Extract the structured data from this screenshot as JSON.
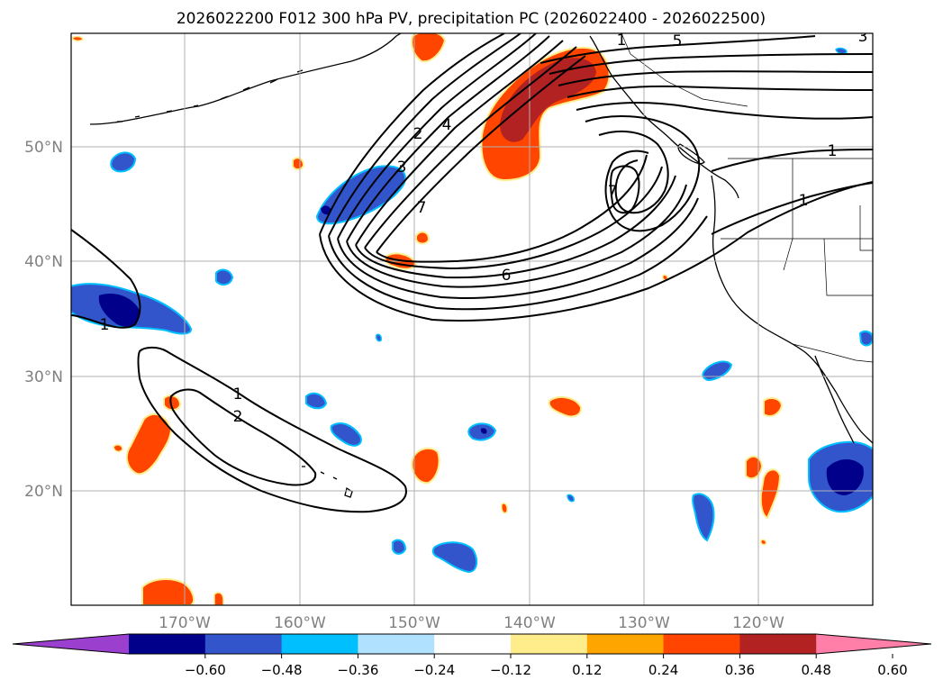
{
  "title": "2026022200 F012 300 hPa PV, precipitation PC (2026022400 - 2026022500)",
  "lat_labels": [
    "50°N",
    "40°N",
    "30°N",
    "20°N"
  ],
  "lon_labels": [
    "170°W",
    "160°W",
    "150°W",
    "140°W",
    "130°W",
    "120°W"
  ],
  "contour_labels": [
    "1",
    "2",
    "3",
    "4",
    "5",
    "6",
    "7",
    "1",
    "1",
    "1",
    "1",
    "2",
    "3"
  ],
  "colorbar": {
    "tick_labels": [
      "−0.60",
      "−0.48",
      "−0.36",
      "−0.24",
      "−0.12",
      "0.12",
      "0.24",
      "0.36",
      "0.48",
      "0.60"
    ],
    "colors": [
      "#9b3fcf",
      "#00008b",
      "#3355cc",
      "#00bfff",
      "#b0e2ff",
      "#ffffff",
      "#ffec8b",
      "#ffa500",
      "#ff4500",
      "#b22222",
      "#ff7fa8"
    ]
  },
  "colors": {
    "neg_strong": "#00008b",
    "neg_mid": "#3355cc",
    "neg_light": "#00bfff",
    "pos_mid": "#ff4500",
    "pos_strong": "#b22222",
    "pos_light": "#ffa500",
    "grid": "#b0b0b0",
    "axis_label": "#808080"
  }
}
